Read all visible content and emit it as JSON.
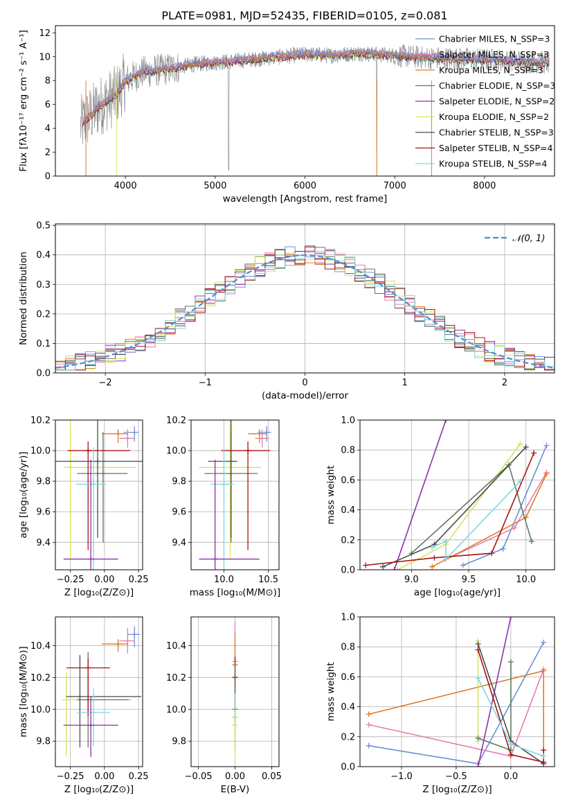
{
  "title": "PLATE=0981, MJD=52435, FIBERID=0105, z=0.081",
  "colors": {
    "blue": "#6b8fd6",
    "pink": "#e07fb3",
    "orange": "#e07a28",
    "lime": "#d8e35c",
    "gray": "#7f7f7f",
    "darkgreen": "#5c7a5c",
    "purple": "#8f2fa8",
    "darkgray": "#4a4a4a",
    "darkred": "#aa1111",
    "cyan": "#7fd6df",
    "dashblue": "#5b8fd8"
  },
  "chart_data": [
    {
      "id": "spectrum",
      "type": "line",
      "xlabel": "wavelength [Angstrom, rest frame]",
      "ylabel": "Flux [fλ10⁻¹⁷ erg cm⁻² s⁻¹ A⁻¹]",
      "xlim": [
        3220,
        8780
      ],
      "ylim": [
        0,
        12.6
      ],
      "xticks": [
        4000,
        5000,
        6000,
        7000,
        8000
      ],
      "yticks": [
        0,
        2,
        4,
        6,
        8,
        10,
        12
      ],
      "legend_position": "right",
      "series": [
        {
          "name": "Chabrier MILES, N_SSP=3",
          "color": "blue"
        },
        {
          "name": "Salpeter MILES, N_SSP=3",
          "color": "pink"
        },
        {
          "name": "Kroupa MILES, N_SSP=3",
          "color": "orange"
        },
        {
          "name": "Chabrier ELODIE, N_SSP=3",
          "color": "darkgreen"
        },
        {
          "name": "Salpeter ELODIE, N_SSP=2",
          "color": "purple"
        },
        {
          "name": "Kroupa ELODIE, N_SSP=2",
          "color": "lime"
        },
        {
          "name": "Chabrier STELIB, N_SSP=3",
          "color": "darkgray"
        },
        {
          "name": "Salpeter STELIB, N_SSP=4",
          "color": "darkred"
        },
        {
          "name": "Kroupa STELIB, N_SSP=4",
          "color": "cyan"
        }
      ],
      "continuum": {
        "x": [
          3500,
          3700,
          3900,
          4000,
          4200,
          4500,
          4800,
          5000,
          5300,
          5600,
          6000,
          6300,
          6600,
          7000,
          7400,
          7800,
          8200,
          8700
        ],
        "y": [
          4.2,
          5.8,
          6.8,
          8.0,
          8.7,
          9.0,
          9.4,
          9.5,
          9.7,
          9.9,
          10.2,
          10.1,
          10.3,
          10.1,
          9.9,
          9.8,
          9.7,
          9.5
        ]
      }
    },
    {
      "id": "residuals",
      "type": "line",
      "xlabel": "(data-model)/error",
      "ylabel": "Normed distribution",
      "xlim": [
        -2.5,
        2.5
      ],
      "ylim": [
        0,
        0.505
      ],
      "xticks": [
        -2,
        -1,
        0,
        1,
        2
      ],
      "yticks": [
        0.0,
        0.1,
        0.2,
        0.3,
        0.4,
        0.5
      ],
      "legend": "𝒩(0, 1)",
      "legend_position": "top-right",
      "grid": true
    },
    {
      "id": "age_vs_Z",
      "type": "errorbar",
      "xlabel": "Z [log₁₀(Z/Z⊙)]",
      "ylabel": "age  [log₁₀(age/yr)]",
      "xlim": [
        -0.36,
        0.28
      ],
      "ylim": [
        9.22,
        10.2
      ],
      "xticks": [
        -0.25,
        0.0,
        0.25
      ],
      "yticks": [
        9.4,
        9.6,
        9.8,
        10.0,
        10.2
      ],
      "grid": true,
      "points": [
        {
          "color": "blue",
          "x": 0.22,
          "y": 10.12,
          "xerr": [
            0.08,
            0.03
          ],
          "yerr": [
            0.06,
            0.04
          ]
        },
        {
          "color": "pink",
          "x": 0.17,
          "y": 10.08,
          "xerr": [
            0.06,
            0.05
          ],
          "yerr": [
            0.06,
            0.06
          ]
        },
        {
          "color": "orange",
          "x": 0.1,
          "y": 10.11,
          "xerr": [
            0.12,
            0.07
          ],
          "yerr": [
            0.06,
            0.03
          ]
        },
        {
          "color": "lime",
          "x": -0.25,
          "y": 9.89,
          "xerr": [
            0.05,
            0.48
          ],
          "yerr": [
            0.6,
            0.31
          ]
        },
        {
          "color": "darkgreen",
          "x": -0.01,
          "y": 9.85,
          "xerr": [
            0.19,
            0.18
          ],
          "yerr": [
            0.45,
            0.27
          ]
        },
        {
          "color": "darkgray",
          "x": -0.05,
          "y": 9.93,
          "xerr": [
            0.34,
            0.43
          ],
          "yerr": [
            0.5,
            0.27
          ]
        },
        {
          "color": "darkred",
          "x": -0.12,
          "y": 10.0,
          "xerr": [
            0.15,
            0.31
          ],
          "yerr": [
            0.65,
            0.06
          ]
        },
        {
          "color": "cyan",
          "x": -0.08,
          "y": 9.78,
          "xerr": [
            0.13,
            0.09
          ],
          "yerr": [
            0.56,
            0.24
          ]
        },
        {
          "color": "purple",
          "x": -0.1,
          "y": 9.29,
          "xerr": [
            0.2,
            0.2
          ],
          "yerr": [
            0.6,
            0.65
          ]
        }
      ]
    },
    {
      "id": "age_vs_mass",
      "type": "errorbar",
      "xlabel": "mass [log₁₀(M/M⊙)]",
      "xlim": [
        9.63,
        10.62
      ],
      "ylim": [
        9.22,
        10.2
      ],
      "xticks": [
        10.0,
        10.5
      ],
      "yticks": [
        9.4,
        9.6,
        9.8,
        10.0,
        10.2
      ],
      "grid": true,
      "points": [
        {
          "color": "blue",
          "x": 10.48,
          "y": 10.12,
          "xerr": [
            0.1,
            0.05
          ],
          "yerr": [
            0.06,
            0.04
          ]
        },
        {
          "color": "pink",
          "x": 10.43,
          "y": 10.08,
          "xerr": [
            0.08,
            0.08
          ],
          "yerr": [
            0.06,
            0.06
          ]
        },
        {
          "color": "orange",
          "x": 10.4,
          "y": 10.11,
          "xerr": [
            0.13,
            0.08
          ],
          "yerr": [
            0.06,
            0.03
          ]
        },
        {
          "color": "lime",
          "x": 10.07,
          "y": 9.89,
          "xerr": [
            0.35,
            0.35
          ],
          "yerr": [
            0.6,
            0.31
          ]
        },
        {
          "color": "darkgreen",
          "x": 10.08,
          "y": 9.85,
          "xerr": [
            0.3,
            0.3
          ],
          "yerr": [
            0.45,
            0.27
          ]
        },
        {
          "color": "darkgray",
          "x": 10.08,
          "y": 9.93,
          "xerr": [
            0.26,
            0.07
          ],
          "yerr": [
            0.5,
            0.27
          ]
        },
        {
          "color": "darkred",
          "x": 10.27,
          "y": 10.0,
          "xerr": [
            0.3,
            0.25
          ],
          "yerr": [
            0.65,
            0.06
          ]
        },
        {
          "color": "cyan",
          "x": 10.0,
          "y": 9.78,
          "xerr": [
            0.15,
            0.11
          ],
          "yerr": [
            0.56,
            0.24
          ]
        },
        {
          "color": "purple",
          "x": 9.9,
          "y": 9.29,
          "xerr": [
            0.18,
            0.5
          ],
          "yerr": [
            0.6,
            0.65
          ]
        }
      ]
    },
    {
      "id": "weight_vs_age",
      "type": "line",
      "xlabel": "age  [log₁₀(age/yr)]",
      "ylabel": "mass weight",
      "xlim": [
        8.55,
        10.25
      ],
      "ylim": [
        0,
        1.0
      ],
      "xticks": [
        9.0,
        9.5,
        10.0
      ],
      "yticks": [
        0.0,
        0.2,
        0.4,
        0.6,
        0.8,
        1.0
      ],
      "grid": true,
      "series": [
        {
          "color": "blue",
          "x": [
            9.45,
            9.8,
            10.18
          ],
          "y": [
            0.03,
            0.14,
            0.83
          ]
        },
        {
          "color": "pink",
          "x": [
            9.3,
            9.9,
            10.18
          ],
          "y": [
            0.07,
            0.28,
            0.65
          ]
        },
        {
          "color": "orange",
          "x": [
            9.18,
            10.0,
            10.18
          ],
          "y": [
            0.02,
            0.35,
            0.64
          ]
        },
        {
          "color": "lime",
          "x": [
            8.88,
            9.3,
            9.95
          ],
          "y": [
            0.0,
            0.17,
            0.84
          ]
        },
        {
          "color": "darkgreen",
          "x": [
            9.0,
            9.85,
            10.05
          ],
          "y": [
            0.11,
            0.7,
            0.19
          ]
        },
        {
          "color": "purple",
          "x": [
            8.85,
            9.3
          ],
          "y": [
            0.0,
            1.0
          ]
        },
        {
          "color": "darkgray",
          "x": [
            8.75,
            9.2,
            10.0
          ],
          "y": [
            0.02,
            0.17,
            0.82
          ]
        },
        {
          "color": "darkred",
          "x": [
            8.6,
            9.2,
            9.7,
            10.07
          ],
          "y": [
            0.03,
            0.08,
            0.11,
            0.78
          ]
        },
        {
          "color": "cyan",
          "x": [
            9.18,
            9.3,
            9.3,
            9.95
          ],
          "y": [
            0.15,
            0.19,
            0.07,
            0.59
          ]
        }
      ]
    },
    {
      "id": "mass_vs_Z",
      "type": "errorbar",
      "xlabel": "Z [log₁₀(Z/Z⊙)]",
      "ylabel": "mass [log₁₀(M/M⊙)]",
      "xlim": [
        -0.36,
        0.28
      ],
      "ylim": [
        9.64,
        10.58
      ],
      "xticks": [
        -0.25,
        0.0,
        0.25
      ],
      "yticks": [
        9.8,
        10.0,
        10.2,
        10.4
      ],
      "grid": true,
      "points": [
        {
          "color": "blue",
          "x": 0.22,
          "y": 10.47,
          "xerr": [
            0.05,
            0.04
          ],
          "yerr": [
            0.08,
            0.05
          ]
        },
        {
          "color": "pink",
          "x": 0.17,
          "y": 10.43,
          "xerr": [
            0.06,
            0.05
          ],
          "yerr": [
            0.08,
            0.08
          ]
        },
        {
          "color": "orange",
          "x": 0.1,
          "y": 10.41,
          "xerr": [
            0.12,
            0.07
          ],
          "yerr": [
            0.05,
            0.03
          ]
        },
        {
          "color": "lime",
          "x": -0.28,
          "y": 10.06,
          "xerr": [
            0.03,
            0.48
          ],
          "yerr": [
            0.35,
            0.17
          ]
        },
        {
          "color": "darkgreen",
          "x": -0.12,
          "y": 10.06,
          "xerr": [
            0.08,
            0.3
          ],
          "yerr": [
            0.3,
            0.3
          ]
        },
        {
          "color": "darkgray",
          "x": -0.18,
          "y": 10.08,
          "xerr": [
            0.1,
            0.45
          ],
          "yerr": [
            0.32,
            0.26
          ]
        },
        {
          "color": "darkred",
          "x": -0.12,
          "y": 10.26,
          "xerr": [
            0.16,
            0.16
          ],
          "yerr": [
            0.3,
            0.06
          ]
        },
        {
          "color": "cyan",
          "x": -0.08,
          "y": 9.98,
          "xerr": [
            0.12,
            0.12
          ],
          "yerr": [
            0.21,
            0.15
          ]
        },
        {
          "color": "purple",
          "x": -0.1,
          "y": 9.9,
          "xerr": [
            0.2,
            0.2
          ],
          "yerr": [
            0.2,
            0.18
          ]
        }
      ]
    },
    {
      "id": "mass_vs_ebv",
      "type": "errorbar",
      "xlabel": "E(B-V)",
      "xlim": [
        -0.06,
        0.06
      ],
      "ylim": [
        9.64,
        10.58
      ],
      "xticks": [
        -0.05,
        0.0,
        0.05
      ],
      "yticks": [
        9.8,
        10.0,
        10.2,
        10.4
      ],
      "grid": true,
      "points": [
        {
          "color": "pink",
          "x": 0.0,
          "y": 10.3,
          "xerr": [
            0,
            0
          ],
          "yerr": [
            0.2,
            0.25
          ]
        },
        {
          "color": "orange",
          "x": 0.0,
          "y": 10.28,
          "xerr": [
            0,
            0
          ],
          "yerr": [
            0.15,
            0.2
          ]
        },
        {
          "color": "darkred",
          "x": 0.0,
          "y": 10.2,
          "xerr": [
            0,
            0
          ],
          "yerr": [
            0.3,
            0.13
          ]
        },
        {
          "color": "darkgreen",
          "x": 0.0,
          "y": 10.0,
          "xerr": [
            0,
            0
          ],
          "yerr": [
            0.26,
            0.3
          ]
        },
        {
          "color": "cyan",
          "x": 0.0,
          "y": 9.95,
          "xerr": [
            0,
            0
          ],
          "yerr": [
            0.2,
            0.15
          ]
        },
        {
          "color": "lime",
          "x": 0.0,
          "y": 9.9,
          "xerr": [
            0,
            0
          ],
          "yerr": [
            0.2,
            0.1
          ]
        }
      ]
    },
    {
      "id": "weight_vs_Z",
      "type": "line",
      "xlabel": "Z [log₁₀(Z/Z⊙)]",
      "ylabel": "mass weight",
      "xlim": [
        -1.38,
        0.4
      ],
      "ylim": [
        0,
        1.0
      ],
      "xticks": [
        -1.0,
        -0.5,
        0.0
      ],
      "yticks": [
        0.0,
        0.2,
        0.4,
        0.6,
        0.8,
        1.0
      ],
      "grid": true,
      "series": [
        {
          "color": "blue",
          "x": [
            -1.3,
            -0.3,
            0.3
          ],
          "y": [
            0.14,
            0.02,
            0.83
          ]
        },
        {
          "color": "pink",
          "x": [
            -1.3,
            0.0,
            0.3
          ],
          "y": [
            0.28,
            0.07,
            0.65
          ]
        },
        {
          "color": "orange",
          "x": [
            -1.3,
            0.3,
            0.3
          ],
          "y": [
            0.35,
            0.64,
            0.02
          ]
        },
        {
          "color": "lime",
          "x": [
            -0.3,
            -0.3
          ],
          "y": [
            0.84,
            0.17
          ]
        },
        {
          "color": "darkgreen",
          "x": [
            -0.3,
            0.0,
            0.0
          ],
          "y": [
            0.19,
            0.11,
            0.7
          ]
        },
        {
          "color": "purple",
          "x": [
            -0.3,
            0.0
          ],
          "y": [
            0.0,
            1.0
          ]
        },
        {
          "color": "darkgray",
          "x": [
            -0.3,
            0.0,
            0.3
          ],
          "y": [
            0.82,
            0.17,
            0.02
          ]
        },
        {
          "color": "darkred",
          "x": [
            -0.3,
            0.0,
            0.3,
            0.3
          ],
          "y": [
            0.78,
            0.08,
            0.03,
            0.11
          ]
        },
        {
          "color": "cyan",
          "x": [
            -0.3,
            0.0,
            0.3
          ],
          "y": [
            0.59,
            0.15,
            0.07
          ]
        }
      ]
    }
  ]
}
